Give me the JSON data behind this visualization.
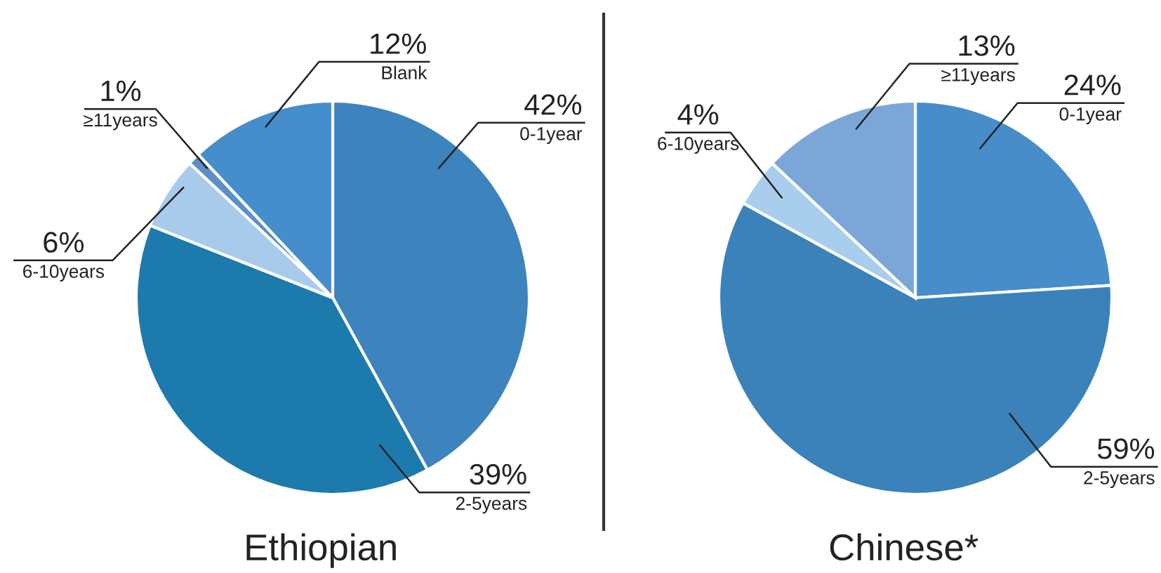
{
  "chart_data": [
    {
      "type": "pie",
      "title": "Ethiopian",
      "categories": [
        "0-1year",
        "2-5years",
        "6-10years",
        "≥11years",
        "Blank"
      ],
      "values": [
        42,
        39,
        6,
        1,
        12
      ],
      "value_labels": [
        "42%",
        "39%",
        "6%",
        "1%",
        "12%"
      ],
      "colors": [
        "#3d83bd",
        "#1d7aad",
        "#a8cbeb",
        "#5a8fc8",
        "#468ecb"
      ]
    },
    {
      "type": "pie",
      "title": "Chinese*",
      "categories": [
        "0-1year",
        "2-5years",
        "6-10years",
        "≥11years"
      ],
      "values": [
        24,
        59,
        4,
        13
      ],
      "value_labels": [
        "24%",
        "59%",
        "4%",
        "13%"
      ],
      "colors": [
        "#468dca",
        "#3b82bb",
        "#a9cdec",
        "#7ba7d8"
      ]
    }
  ]
}
